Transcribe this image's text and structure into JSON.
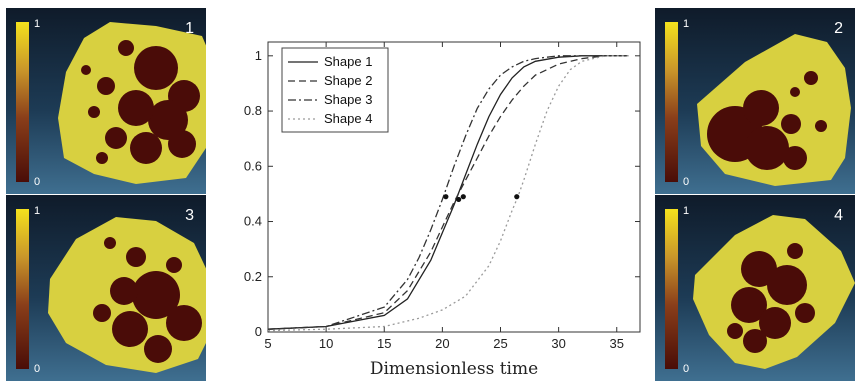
{
  "panels": [
    {
      "id": "1",
      "cb_max": "1",
      "cb_min": "0"
    },
    {
      "id": "2",
      "cb_max": "1",
      "cb_min": "0"
    },
    {
      "id": "3",
      "cb_max": "1",
      "cb_min": "0"
    },
    {
      "id": "4",
      "cb_max": "1",
      "cb_min": "0"
    }
  ],
  "colors": {
    "field": "#d8d040",
    "cell": "#4a0c08",
    "wall": "#d8d040"
  },
  "chart_data": {
    "type": "line",
    "title": "",
    "xlabel": "Dimensionless time",
    "ylabel": "",
    "xlim": [
      5,
      37
    ],
    "ylim": [
      0,
      1.05
    ],
    "xticks": [
      5,
      10,
      15,
      20,
      25,
      30,
      35
    ],
    "yticks": [
      0,
      0.2,
      0.4,
      0.6,
      0.8,
      1
    ],
    "grid": false,
    "legend_position": "top-left",
    "series": [
      {
        "name": "Shape 1",
        "style": "solid",
        "color": "#222222",
        "x": [
          5,
          10,
          15,
          17,
          19,
          20,
          21,
          22,
          23,
          24,
          25,
          26,
          27,
          28,
          30,
          32,
          34,
          36
        ],
        "y": [
          0.01,
          0.02,
          0.06,
          0.12,
          0.26,
          0.36,
          0.46,
          0.57,
          0.68,
          0.78,
          0.86,
          0.92,
          0.96,
          0.98,
          0.995,
          1.0,
          1.0,
          1.0
        ],
        "marker": {
          "x": 21.8,
          "y": 0.49
        }
      },
      {
        "name": "Shape 2",
        "style": "dashed",
        "color": "#333333",
        "x": [
          5,
          10,
          15,
          17,
          19,
          20,
          21,
          22,
          23,
          24,
          25,
          26,
          27,
          28,
          30,
          32,
          34,
          36
        ],
        "y": [
          0.01,
          0.02,
          0.07,
          0.15,
          0.29,
          0.38,
          0.47,
          0.55,
          0.63,
          0.71,
          0.78,
          0.84,
          0.89,
          0.93,
          0.97,
          0.99,
          1.0,
          1.0
        ],
        "marker": {
          "x": 21.4,
          "y": 0.48
        }
      },
      {
        "name": "Shape 3",
        "style": "dashdot",
        "color": "#333333",
        "x": [
          5,
          10,
          15,
          17,
          18,
          19,
          20,
          21,
          22,
          23,
          24,
          25,
          26,
          27,
          28,
          30,
          32,
          36
        ],
        "y": [
          0.01,
          0.02,
          0.09,
          0.19,
          0.27,
          0.37,
          0.48,
          0.6,
          0.71,
          0.81,
          0.88,
          0.93,
          0.96,
          0.98,
          0.99,
          1.0,
          1.0,
          1.0
        ],
        "marker": {
          "x": 20.3,
          "y": 0.49
        }
      },
      {
        "name": "Shape 4",
        "style": "dotted",
        "color": "#9a9a9a",
        "x": [
          5,
          10,
          15,
          18,
          20,
          22,
          24,
          25,
          26,
          26.5,
          27,
          28,
          29,
          30,
          31,
          32,
          34,
          36
        ],
        "y": [
          0.005,
          0.01,
          0.02,
          0.05,
          0.08,
          0.13,
          0.24,
          0.33,
          0.44,
          0.49,
          0.55,
          0.68,
          0.8,
          0.89,
          0.95,
          0.98,
          1.0,
          1.0
        ],
        "marker": {
          "x": 26.4,
          "y": 0.49
        }
      }
    ]
  }
}
